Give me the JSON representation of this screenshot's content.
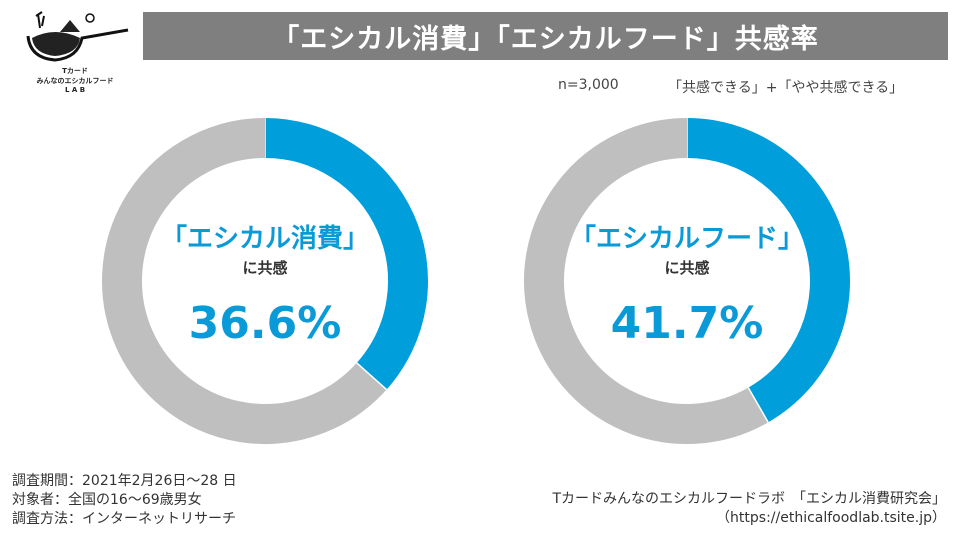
{
  "header": {
    "title": "「エシカル消費」「エシカルフード」共感率"
  },
  "logo": {
    "line1": "Tカード",
    "line2": "みんなのエシカルフード",
    "line3": "L A B"
  },
  "meta": {
    "n": "n=3,000",
    "definition": "「共感できる」+「やや共感できる」"
  },
  "colors": {
    "accent": "#009edb",
    "remainder": "#bfbfbf",
    "title_bar": "#7f7f7f"
  },
  "chart_data": [
    {
      "type": "pie",
      "subtype": "donut",
      "title": "「エシカル消費」",
      "subtitle": "に共感",
      "value_label": "36.6%",
      "values": [
        36.6,
        63.4
      ]
    },
    {
      "type": "pie",
      "subtype": "donut",
      "title": "「エシカルフード」",
      "subtitle": "に共感",
      "value_label": "41.7%",
      "values": [
        41.7,
        58.3
      ]
    }
  ],
  "footer": {
    "period": "調査期間：2021年2月26日〜28 日",
    "target": "対象者：全国の16〜69歳男女",
    "method": "調査方法：インターネットリサーチ",
    "source": "Tカードみんなのエシカルフードラボ　「エシカル消費研究会」",
    "url": "（https://ethicalfoodlab.tsite.jp）"
  }
}
